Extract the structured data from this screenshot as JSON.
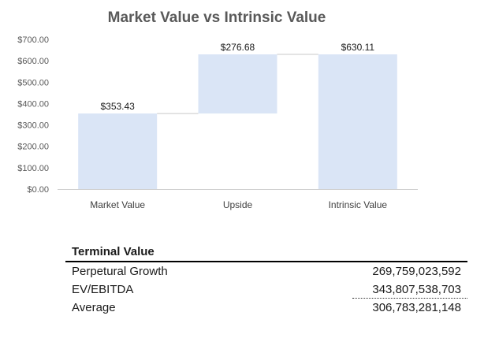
{
  "chart_data": {
    "type": "waterfall",
    "title": "Market Value vs Intrinsic Value",
    "categories": [
      "Market Value",
      "Upside",
      "Intrinsic Value"
    ],
    "values": [
      353.43,
      276.68,
      630.11
    ],
    "bar_base": [
      0,
      353.43,
      0
    ],
    "data_labels": [
      "$353.43",
      "$276.68",
      "$630.11"
    ],
    "y_ticks": [
      "$0.00",
      "$100.00",
      "$200.00",
      "$300.00",
      "$400.00",
      "$500.00",
      "$600.00",
      "$700.00"
    ],
    "ylim": [
      0,
      700
    ],
    "grid": false,
    "legend": "none",
    "colors": {
      "bar": "#dae5f6",
      "connector": "#c9c9c9",
      "axis": "#d0d0d0"
    }
  },
  "terminal_value": {
    "heading": "Terminal Value",
    "rows": [
      {
        "label": "Perpetural Growth",
        "value": "269,759,023,592"
      },
      {
        "label": "EV/EBITDA",
        "value": "343,807,538,703"
      },
      {
        "label": "Average",
        "value": "306,783,281,148"
      }
    ]
  }
}
